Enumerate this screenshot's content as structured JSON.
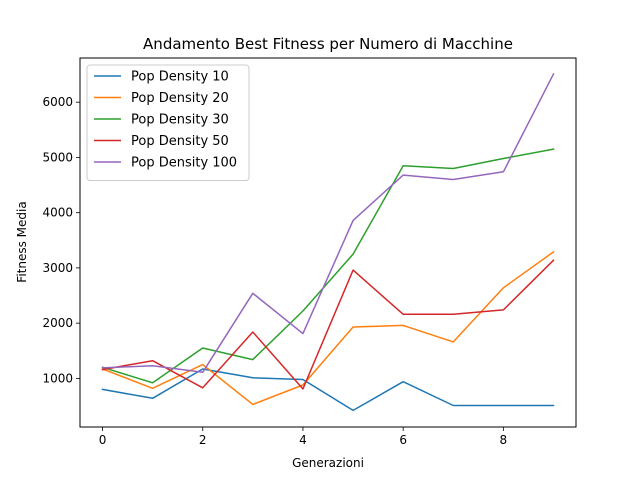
{
  "chart_data": {
    "type": "line",
    "title": "Andamento Best Fitness per Numero di Macchine",
    "xlabel": "Generazioni",
    "ylabel": "Fitness Media",
    "x": [
      0,
      1,
      2,
      3,
      4,
      5,
      6,
      7,
      8,
      9
    ],
    "xlim": [
      -0.45,
      9.45
    ],
    "ylim": [
      120,
      6800
    ],
    "xticks": [
      0,
      2,
      4,
      6,
      8
    ],
    "yticks": [
      1000,
      2000,
      3000,
      4000,
      5000,
      6000
    ],
    "grid": false,
    "legend_position": "upper-left",
    "series": [
      {
        "name": "Pop Density 10",
        "color": "#1f77b4",
        "values": [
          800,
          640,
          1170,
          1010,
          980,
          420,
          940,
          510,
          510,
          510
        ]
      },
      {
        "name": "Pop Density 20",
        "color": "#ff7f0e",
        "values": [
          1170,
          820,
          1250,
          530,
          880,
          1930,
          1960,
          1660,
          2640,
          3290
        ]
      },
      {
        "name": "Pop Density 30",
        "color": "#2ca02c",
        "values": [
          1200,
          920,
          1550,
          1340,
          2220,
          3250,
          4850,
          4800,
          4980,
          5150
        ]
      },
      {
        "name": "Pop Density 50",
        "color": "#d62728",
        "values": [
          1160,
          1320,
          830,
          1840,
          810,
          2960,
          2160,
          2160,
          2240,
          3140
        ]
      },
      {
        "name": "Pop Density 100",
        "color": "#9467bd",
        "values": [
          1190,
          1230,
          1110,
          2540,
          1810,
          3860,
          4680,
          4600,
          4740,
          6510
        ]
      }
    ]
  }
}
